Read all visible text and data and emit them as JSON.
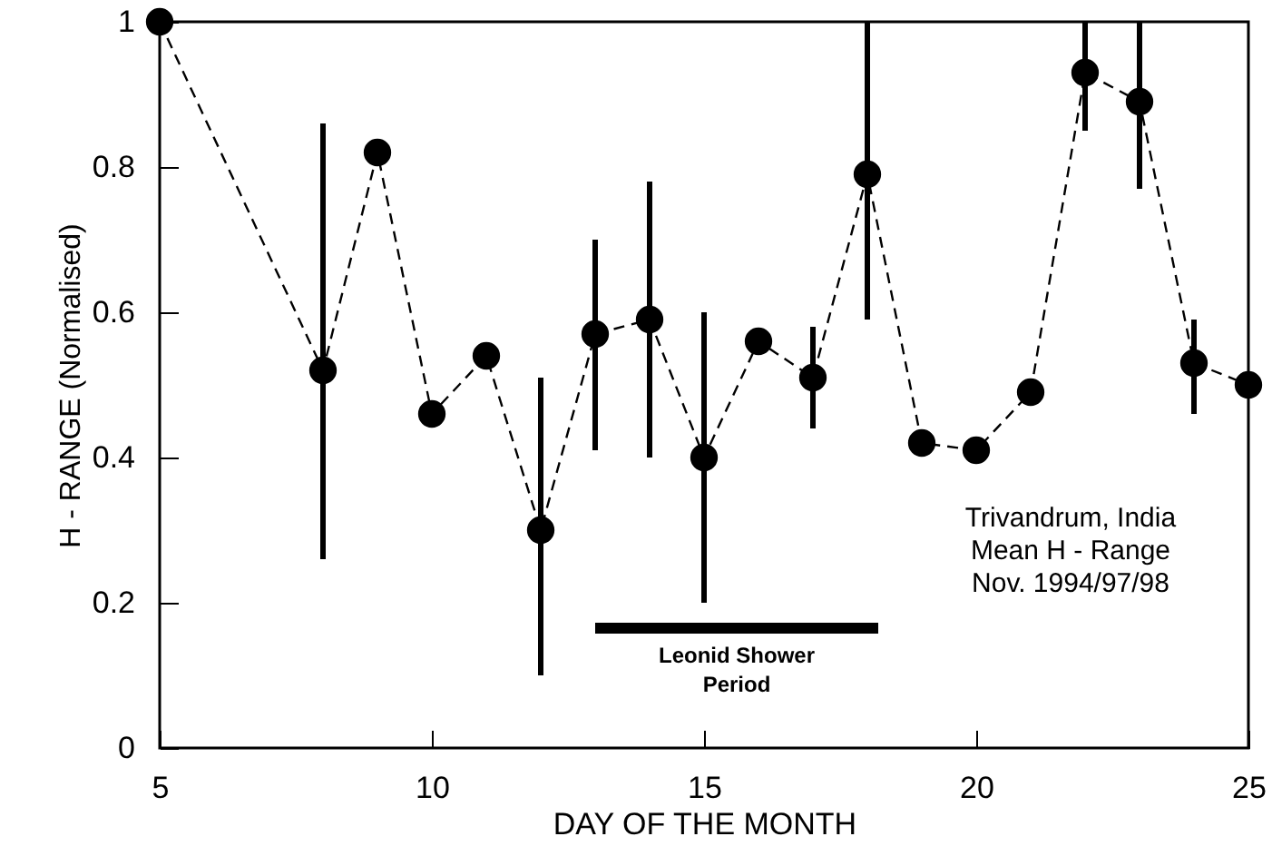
{
  "chart_data": {
    "type": "line",
    "xlabel": "DAY OF THE MONTH",
    "ylabel": "H - RANGE (Normalised)",
    "x": [
      5,
      8,
      9,
      10,
      11,
      12,
      13,
      14,
      15,
      16,
      17,
      18,
      19,
      20,
      21,
      22,
      23,
      24,
      25
    ],
    "series": [
      {
        "color": "#000000",
        "marker": "circle",
        "line_style": "dashed",
        "values": [
          1.0,
          0.52,
          0.82,
          0.46,
          0.54,
          0.3,
          0.57,
          0.59,
          0.4,
          0.56,
          0.51,
          0.79,
          0.42,
          0.41,
          0.49,
          0.93,
          0.89,
          0.53,
          0.5
        ],
        "errors": [
          null,
          [
            0.26,
            0.86
          ],
          null,
          null,
          null,
          [
            0.1,
            0.51
          ],
          [
            0.41,
            0.7
          ],
          [
            0.4,
            0.78
          ],
          [
            0.2,
            0.6
          ],
          null,
          [
            0.44,
            0.58
          ],
          [
            0.59,
            1.0
          ],
          null,
          null,
          null,
          [
            0.85,
            1.0
          ],
          [
            0.77,
            1.0
          ],
          [
            0.46,
            0.59
          ],
          null
        ]
      },
      {
        "name": "Leonid Shower\nPeriod",
        "type": "line",
        "color": "#000000",
        "marker": "none",
        "line_style": "solid",
        "x": [
          13,
          18.2
        ],
        "values": [
          0.165,
          0.165
        ]
      }
    ],
    "xlim": [
      5,
      25
    ],
    "xticks": [
      5,
      10,
      15,
      20,
      25
    ],
    "ylim": [
      0,
      1
    ],
    "yticks": [
      0,
      0.2,
      0.4,
      0.6,
      0.8,
      1
    ],
    "grid": false,
    "annotations": [
      "Trivandrum, India\nMean H - Range\nNov. 1994/97/98"
    ]
  }
}
